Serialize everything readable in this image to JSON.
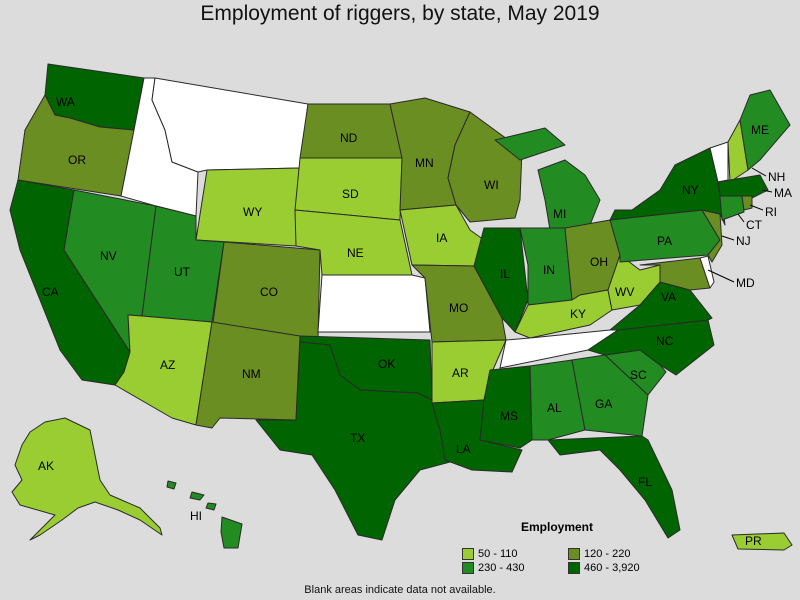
{
  "title": "Employment of riggers, by state, May 2019",
  "footnote": "Blank areas indicate data not available.",
  "legend": {
    "title": "Employment",
    "items": [
      {
        "key": "c1",
        "label": "50 - 110",
        "color": "#9acd32"
      },
      {
        "key": "c2",
        "label": "120 - 220",
        "color": "#6b8e23"
      },
      {
        "key": "c3",
        "label": "230 - 430",
        "color": "#228b22"
      },
      {
        "key": "c4",
        "label": "460 - 3,920",
        "color": "#006400"
      }
    ]
  },
  "no_data_color": "#ffffff",
  "states": {
    "WA": {
      "label": "WA",
      "range": "460 - 3,920"
    },
    "OR": {
      "label": "OR",
      "range": "120 - 220"
    },
    "CA": {
      "label": "CA",
      "range": "460 - 3,920"
    },
    "NV": {
      "label": "NV",
      "range": "230 - 430"
    },
    "ID": {
      "label": "",
      "range": null
    },
    "MT": {
      "label": "",
      "range": null
    },
    "WY": {
      "label": "WY",
      "range": "50 - 110"
    },
    "UT": {
      "label": "UT",
      "range": "230 - 430"
    },
    "AZ": {
      "label": "AZ",
      "range": "50 - 110"
    },
    "CO": {
      "label": "CO",
      "range": "120 - 220"
    },
    "NM": {
      "label": "NM",
      "range": "120 - 220"
    },
    "ND": {
      "label": "ND",
      "range": "120 - 220"
    },
    "SD": {
      "label": "SD",
      "range": "50 - 110"
    },
    "NE": {
      "label": "NE",
      "range": "50 - 110"
    },
    "KS": {
      "label": "",
      "range": null
    },
    "OK": {
      "label": "OK",
      "range": "460 - 3,920"
    },
    "TX": {
      "label": "TX",
      "range": "460 - 3,920"
    },
    "MN": {
      "label": "MN",
      "range": "120 - 220"
    },
    "IA": {
      "label": "IA",
      "range": "50 - 110"
    },
    "MO": {
      "label": "MO",
      "range": "120 - 220"
    },
    "AR": {
      "label": "AR",
      "range": "50 - 110"
    },
    "LA": {
      "label": "LA",
      "range": "460 - 3,920"
    },
    "WI": {
      "label": "WI",
      "range": "120 - 220"
    },
    "IL": {
      "label": "IL",
      "range": "460 - 3,920"
    },
    "MI": {
      "label": "MI",
      "range": "230 - 430"
    },
    "IN": {
      "label": "IN",
      "range": "230 - 430"
    },
    "OH": {
      "label": "OH",
      "range": "120 - 220"
    },
    "KY": {
      "label": "KY",
      "range": "50 - 110"
    },
    "TN": {
      "label": "",
      "range": null
    },
    "MS": {
      "label": "MS",
      "range": "460 - 3,920"
    },
    "AL": {
      "label": "AL",
      "range": "230 - 430"
    },
    "GA": {
      "label": "GA",
      "range": "230 - 430"
    },
    "FL": {
      "label": "FL",
      "range": "460 - 3,920"
    },
    "SC": {
      "label": "SC",
      "range": "230 - 430"
    },
    "NC": {
      "label": "NC",
      "range": "460 - 3,920"
    },
    "VA": {
      "label": "VA",
      "range": "460 - 3,920"
    },
    "WV": {
      "label": "WV",
      "range": "50 - 110"
    },
    "PA": {
      "label": "PA",
      "range": "230 - 430"
    },
    "NY": {
      "label": "NY",
      "range": "460 - 3,920"
    },
    "VT": {
      "label": "",
      "range": null
    },
    "NH": {
      "label": "NH",
      "range": "50 - 110"
    },
    "ME": {
      "label": "ME",
      "range": "230 - 430"
    },
    "MA": {
      "label": "MA",
      "range": "460 - 3,920"
    },
    "RI": {
      "label": "RI",
      "range": "120 - 220"
    },
    "CT": {
      "label": "CT",
      "range": "230 - 430"
    },
    "NJ": {
      "label": "NJ",
      "range": "120 - 220"
    },
    "DE": {
      "label": "",
      "range": null
    },
    "MD": {
      "label": "MD",
      "range": "120 - 220"
    },
    "AK": {
      "label": "AK",
      "range": "50 - 110"
    },
    "HI": {
      "label": "HI",
      "range": "230 - 430"
    },
    "PR": {
      "label": "PR",
      "range": "50 - 110"
    }
  }
}
